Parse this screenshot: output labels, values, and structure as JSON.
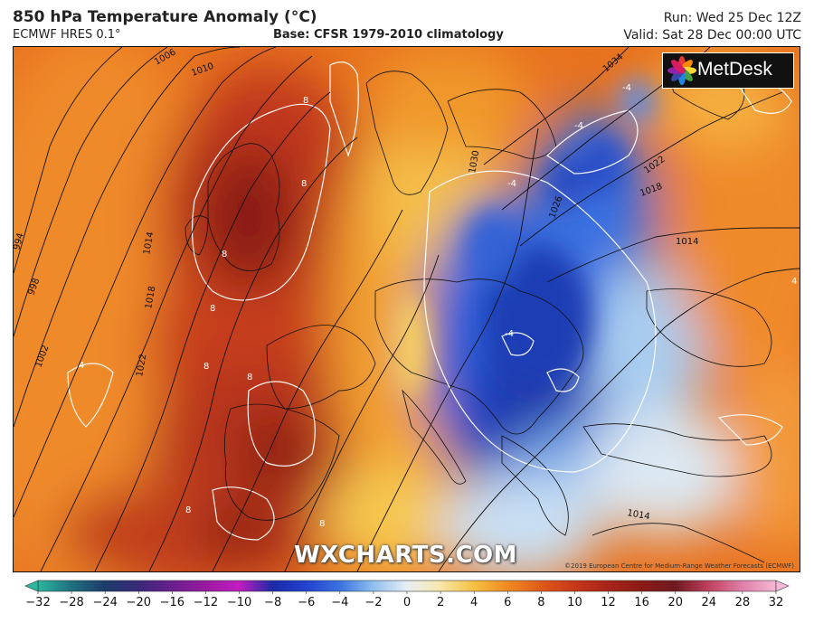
{
  "header": {
    "title": "850 hPa Temperature Anomaly (°C)",
    "model": "ECMWF HRES 0.1°",
    "base": "Base: CFSR 1979-2010 climatology",
    "run": "Run: Wed 25 Dec 12Z",
    "valid": "Valid: Sat 28 Dec 00:00 UTC"
  },
  "logo": {
    "text": "MetDesk",
    "icon": "metdesk-flower-icon"
  },
  "watermark": "WXCHARTS.COM",
  "credit": "©2019 European Centre for Medium-Range Weather Forecasts (ECMWF)",
  "isobars": [
    {
      "label": "994"
    },
    {
      "label": "998"
    },
    {
      "label": "1002"
    },
    {
      "label": "1006"
    },
    {
      "label": "1010"
    },
    {
      "label": "1014"
    },
    {
      "label": "1018"
    },
    {
      "label": "1022"
    },
    {
      "label": "1026"
    },
    {
      "label": "1034"
    },
    {
      "label": "1030"
    }
  ],
  "anomaly_labels": [
    "8",
    "8",
    "8",
    "8",
    "8",
    "8",
    "8",
    "8",
    "-4",
    "-4",
    "-4",
    "-4",
    "4",
    "4"
  ],
  "colorbar": {
    "ticks": [
      "-32",
      "-28",
      "-24",
      "-20",
      "-16",
      "-12",
      "-10",
      "-8",
      "-6",
      "-4",
      "-2",
      "0",
      "2",
      "4",
      "6",
      "8",
      "10",
      "12",
      "16",
      "20",
      "24",
      "28",
      "32"
    ],
    "colors": [
      "#2bb7a0",
      "#1f6f7f",
      "#1c3c6a",
      "#3a2a7a",
      "#6a1e8e",
      "#9a1aa0",
      "#c21cc0",
      "#1a2aa8",
      "#2242d0",
      "#3a72e0",
      "#8fc0ee",
      "#e8eef6",
      "#f7e7a8",
      "#f5c040",
      "#f08a22",
      "#e05a1a",
      "#c8361a",
      "#a82418",
      "#8a1a14",
      "#6e1a20",
      "#c04060",
      "#e080a8",
      "#f6b8d8"
    ]
  }
}
